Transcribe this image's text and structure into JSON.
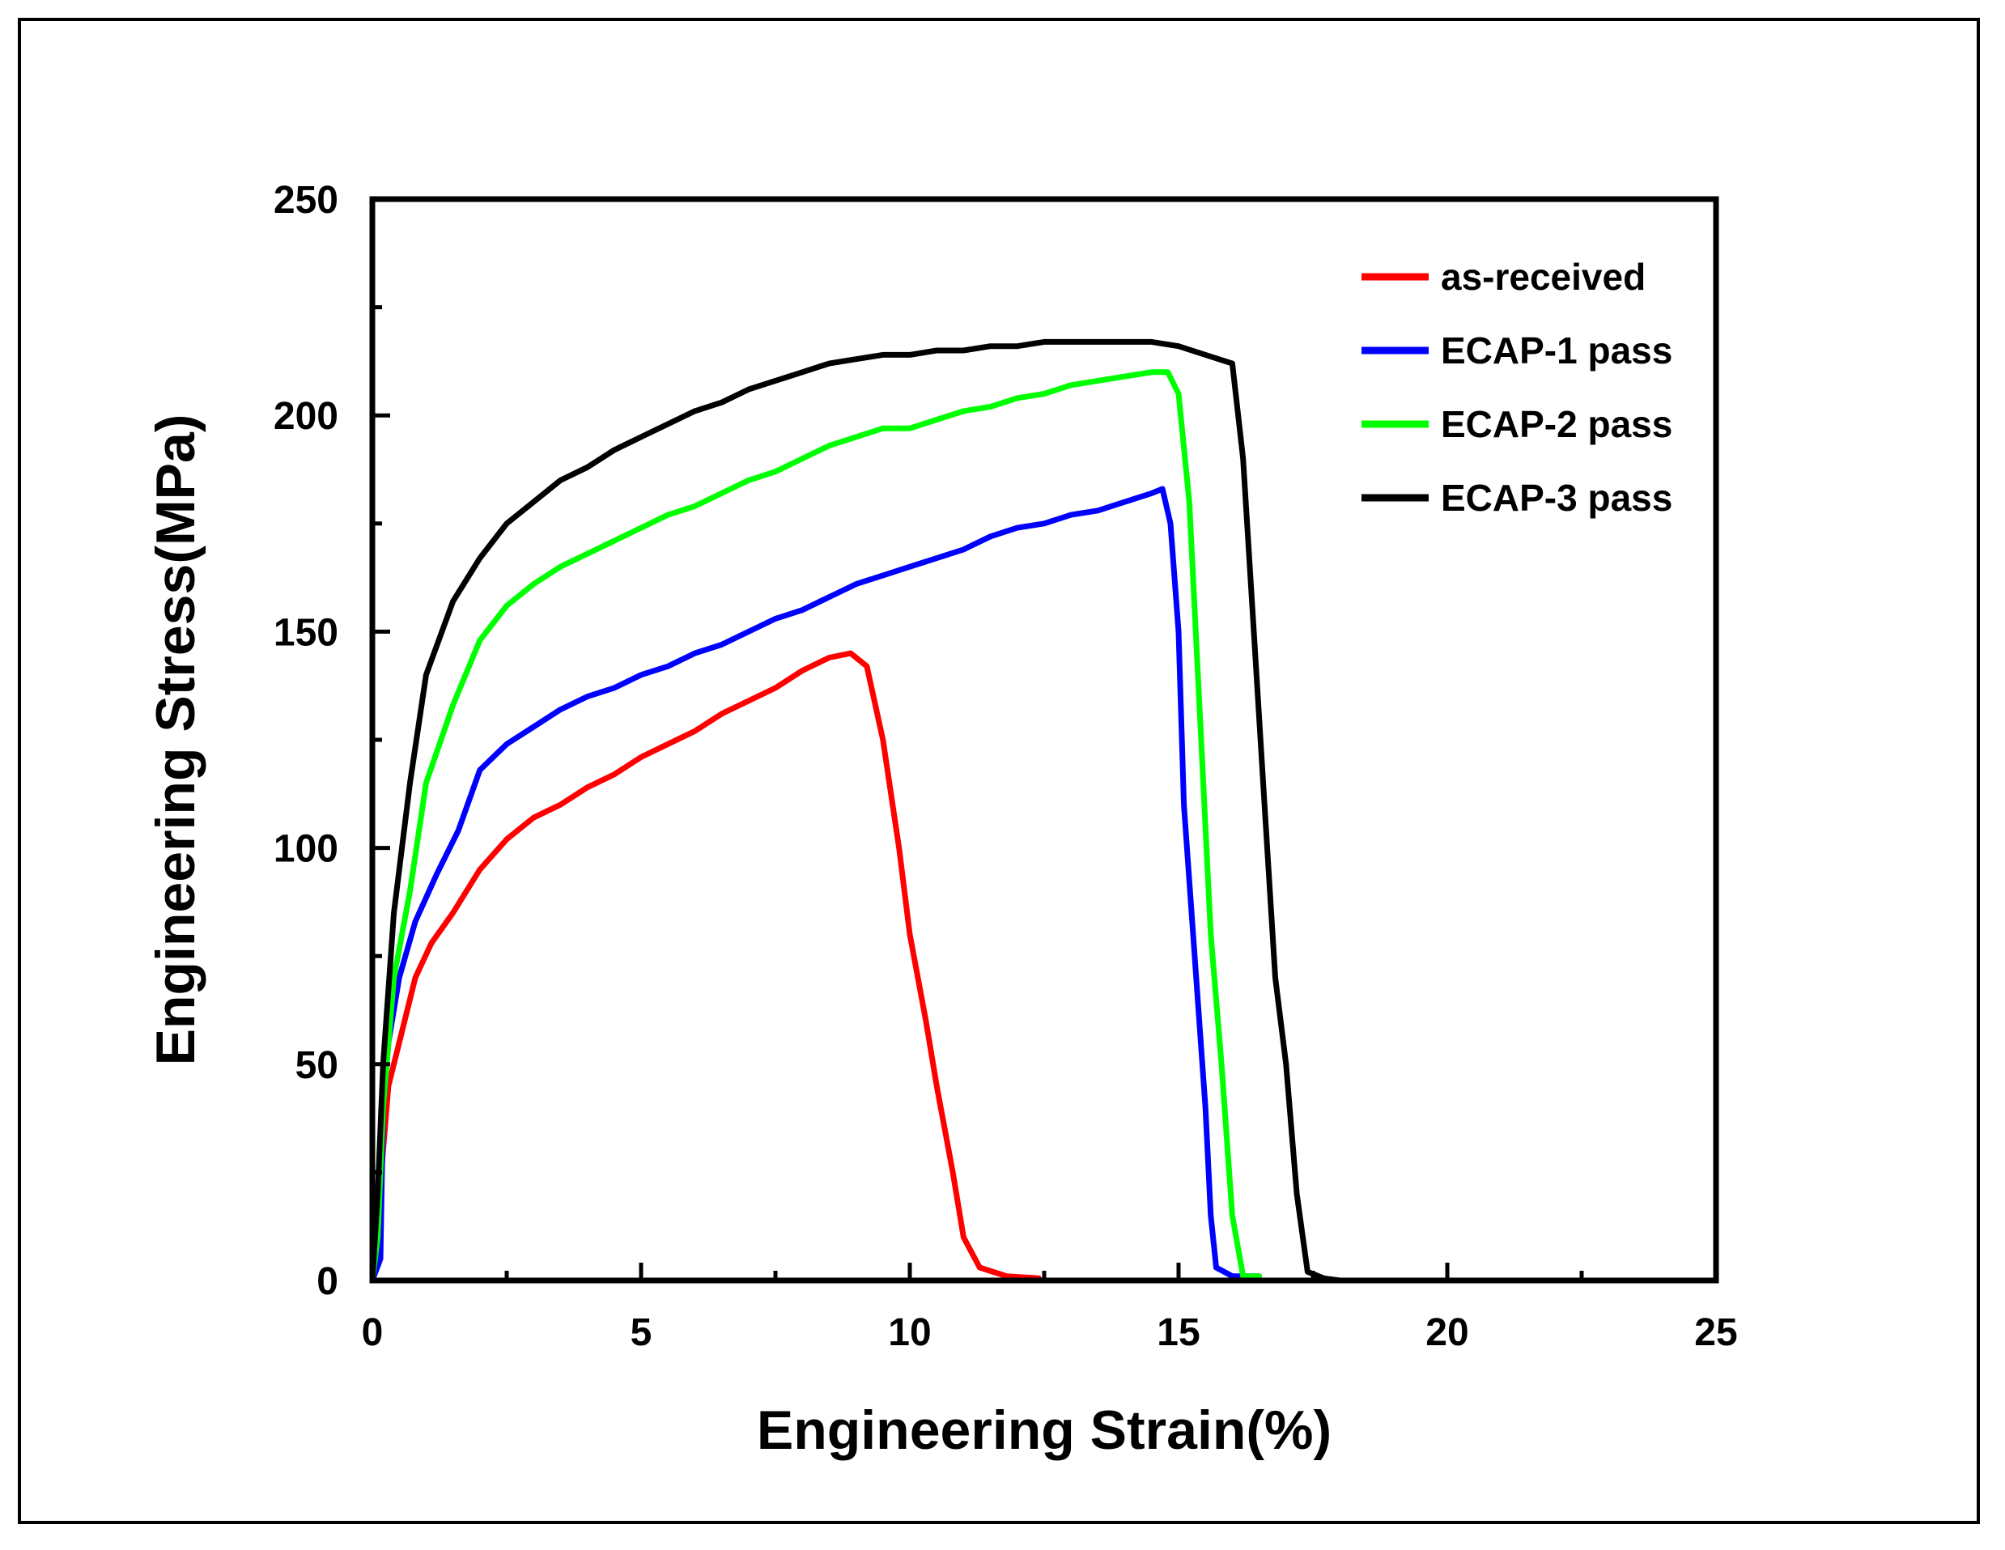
{
  "chart_data": {
    "type": "line",
    "title": "",
    "xlabel": "Engineering Strain(%)",
    "ylabel": "Engineering Stress(MPa)",
    "xlim": [
      0,
      25
    ],
    "ylim": [
      0,
      250
    ],
    "xticks": [
      0,
      5,
      10,
      15,
      20,
      25
    ],
    "yticks": [
      0,
      50,
      100,
      150,
      200,
      250
    ],
    "grid": false,
    "legend_position": "top-right",
    "series": [
      {
        "name": "as-received",
        "color": "#ff0000",
        "x": [
          0.0,
          0.2,
          0.3,
          0.5,
          0.8,
          1.1,
          1.5,
          2.0,
          2.5,
          3.0,
          3.5,
          4.0,
          4.5,
          5.0,
          5.5,
          6.0,
          6.5,
          7.0,
          7.5,
          8.0,
          8.5,
          8.9,
          9.2,
          9.5,
          9.8,
          10.0,
          10.3,
          10.5,
          10.8,
          11.0,
          11.3,
          11.8,
          12.4
        ],
        "y": [
          0,
          30,
          45,
          55,
          70,
          78,
          85,
          95,
          102,
          107,
          110,
          114,
          117,
          121,
          124,
          127,
          131,
          134,
          137,
          141,
          144,
          145,
          142,
          125,
          100,
          80,
          60,
          45,
          25,
          10,
          3,
          1,
          0.5
        ]
      },
      {
        "name": "ECAP-1 pass",
        "color": "#0000ff",
        "x": [
          0.0,
          0.15,
          0.2,
          0.3,
          0.5,
          0.8,
          1.2,
          1.6,
          2.0,
          2.5,
          3.0,
          3.5,
          4.0,
          4.5,
          5.0,
          5.5,
          6.0,
          6.5,
          7.0,
          7.5,
          8.0,
          8.5,
          9.0,
          9.5,
          10.0,
          10.5,
          11.0,
          11.5,
          12.0,
          12.5,
          13.0,
          13.5,
          14.0,
          14.5,
          14.7,
          14.85,
          15.0,
          15.1,
          15.3,
          15.5,
          15.6,
          15.7,
          16.0,
          16.5
        ],
        "y": [
          0,
          5,
          40,
          55,
          70,
          83,
          94,
          104,
          118,
          124,
          128,
          132,
          135,
          137,
          140,
          142,
          145,
          147,
          150,
          153,
          155,
          158,
          161,
          163,
          165,
          167,
          169,
          172,
          174,
          175,
          177,
          178,
          180,
          182,
          183,
          175,
          150,
          110,
          75,
          40,
          15,
          3,
          1,
          1
        ]
      },
      {
        "name": "ECAP-2 pass",
        "color": "#00ff00",
        "x": [
          0.0,
          0.1,
          0.2,
          0.4,
          0.7,
          1.0,
          1.5,
          2.0,
          2.5,
          3.0,
          3.5,
          4.0,
          4.5,
          5.0,
          5.5,
          6.0,
          6.5,
          7.0,
          7.5,
          8.0,
          8.5,
          9.0,
          9.5,
          10.0,
          10.5,
          11.0,
          11.5,
          12.0,
          12.5,
          13.0,
          13.5,
          14.0,
          14.5,
          14.8,
          15.0,
          15.2,
          15.4,
          15.6,
          15.8,
          16.0,
          16.2,
          16.5
        ],
        "y": [
          0,
          10,
          40,
          70,
          90,
          115,
          133,
          148,
          156,
          161,
          165,
          168,
          171,
          174,
          177,
          179,
          182,
          185,
          187,
          190,
          193,
          195,
          197,
          197,
          199,
          201,
          202,
          204,
          205,
          207,
          208,
          209,
          210,
          210,
          205,
          180,
          130,
          80,
          50,
          15,
          1,
          1
        ]
      },
      {
        "name": "ECAP-3 pass",
        "color": "#000000",
        "x": [
          0.0,
          0.1,
          0.2,
          0.4,
          0.7,
          1.0,
          1.5,
          2.0,
          2.5,
          3.0,
          3.5,
          4.0,
          4.5,
          5.0,
          5.5,
          6.0,
          6.5,
          7.0,
          7.5,
          8.0,
          8.5,
          9.0,
          9.5,
          10.0,
          10.5,
          11.0,
          11.5,
          12.0,
          12.5,
          13.0,
          13.5,
          14.0,
          14.5,
          15.0,
          15.5,
          16.0,
          16.2,
          16.4,
          16.6,
          16.8,
          17.0,
          17.2,
          17.4,
          17.7,
          18.0
        ],
        "y": [
          0,
          20,
          50,
          85,
          115,
          140,
          157,
          167,
          175,
          180,
          185,
          188,
          192,
          195,
          198,
          201,
          203,
          206,
          208,
          210,
          212,
          213,
          214,
          214,
          215,
          215,
          216,
          216,
          217,
          217,
          217,
          217,
          217,
          216,
          214,
          212,
          190,
          150,
          110,
          70,
          50,
          20,
          2,
          0.5,
          0
        ]
      }
    ]
  }
}
